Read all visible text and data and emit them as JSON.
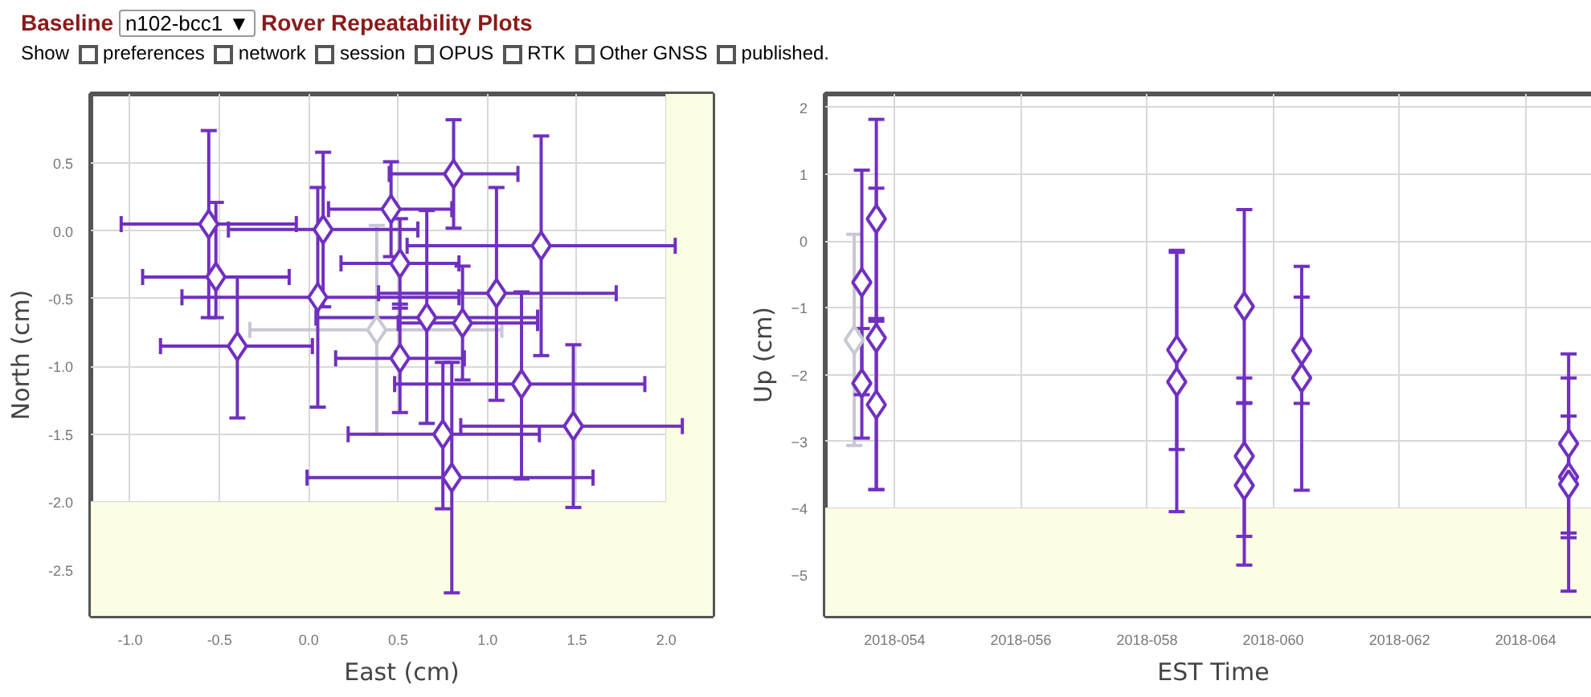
{
  "chart_data": [
    {
      "type": "scatter",
      "title": "Rover Repeatability Plots",
      "annotations": [
        "Baseline",
        "n102-bcc1 ▼",
        "Show",
        "preferences",
        "network",
        "session",
        "OPUS",
        "RTK",
        "Other GNSS",
        "published."
      ],
      "xlabel": "East (cm)",
      "ylabel": "North (cm)",
      "xlim": [
        -1.22,
        2.26
      ],
      "ylim": [
        -2.84,
        1.01
      ],
      "xticks": [
        {
          "value": -1,
          "label": "-1.0"
        },
        {
          "value": -0.5,
          "label": "-0.5"
        },
        {
          "value": 0,
          "label": "0.0"
        },
        {
          "value": 0.5,
          "label": "0.5"
        },
        {
          "value": 1,
          "label": "1.0"
        },
        {
          "value": 1.5,
          "label": "1.5"
        },
        {
          "value": 2,
          "label": "2.0"
        }
      ],
      "yticks": [
        {
          "value": 0.5,
          "label": "0.5"
        },
        {
          "value": 0,
          "label": "0.0"
        },
        {
          "value": -0.5,
          "label": "-0.5"
        },
        {
          "value": -1,
          "label": "-1.0"
        },
        {
          "value": -1.5,
          "label": "-1.5"
        },
        {
          "value": -2,
          "label": "-2.0"
        },
        {
          "value": -2.5,
          "label": "-2.5"
        }
      ],
      "grid": true,
      "marker": "diamond",
      "bands": [
        {
          "axis": "x",
          "from": 2.0,
          "to": 2.26,
          "color": "#fdfde4"
        },
        {
          "axis": "y",
          "from": -2.84,
          "to": -2.0,
          "color": "#fdfde4"
        }
      ],
      "series": [
        {
          "color": "#c8c8d4",
          "x": [
            0.38
          ],
          "values": [
            -0.73
          ],
          "xerrors": [
            [
              -0.33,
              1.08
            ]
          ],
          "errors": [
            [
              -1.5,
              0.04
            ]
          ]
        },
        {
          "color": "#7030c0",
          "x": [
            -0.56,
            -0.52,
            -0.4,
            0.08,
            0.05,
            0.46,
            0.81,
            0.51,
            1.3,
            1.05,
            0.66,
            0.86,
            0.51,
            1.19,
            1.48,
            0.75,
            0.8
          ],
          "values": [
            0.05,
            -0.34,
            -0.85,
            0.01,
            -0.49,
            0.16,
            0.42,
            -0.24,
            -0.11,
            -0.46,
            -0.64,
            -0.68,
            -0.94,
            -1.13,
            -1.44,
            -1.5,
            -1.82
          ],
          "xerrors": [
            [
              -1.05,
              -0.07
            ],
            [
              -0.93,
              -0.11
            ],
            [
              -0.83,
              0.02
            ],
            [
              -0.45,
              0.61
            ],
            [
              -0.71,
              0.84
            ],
            [
              0.11,
              0.8
            ],
            [
              0.45,
              1.17
            ],
            [
              0.18,
              0.84
            ],
            [
              0.55,
              2.05
            ],
            [
              0.39,
              1.72
            ],
            [
              0.04,
              1.28
            ],
            [
              0.5,
              1.28
            ],
            [
              0.15,
              0.87
            ],
            [
              0.48,
              1.88
            ],
            [
              0.85,
              2.09
            ],
            [
              0.22,
              1.29
            ],
            [
              -0.01,
              1.59
            ]
          ],
          "errors": [
            [
              -0.64,
              0.74
            ],
            [
              -0.64,
              0.21
            ],
            [
              -1.38,
              -0.34
            ],
            [
              -0.56,
              0.58
            ],
            [
              -1.3,
              0.32
            ],
            [
              -0.19,
              0.51
            ],
            [
              0.02,
              0.82
            ],
            [
              -0.57,
              0.09
            ],
            [
              -0.92,
              0.7
            ],
            [
              -1.25,
              0.32
            ],
            [
              -1.42,
              0.15
            ],
            [
              -1.1,
              -0.26
            ],
            [
              -1.34,
              -0.54
            ],
            [
              -1.83,
              -0.45
            ],
            [
              -2.04,
              -0.84
            ],
            [
              -2.05,
              -0.97
            ],
            [
              -2.67,
              -0.97
            ]
          ]
        }
      ]
    },
    {
      "type": "scatter",
      "xlabel": "EST Time",
      "ylabel": "Up (cm)",
      "xlim": [
        "2018-02-21T21:36",
        "2018-03-06T04:48"
      ],
      "ylim": [
        -5.61,
        2.2
      ],
      "xticks": [
        {
          "value": "2018-02-23",
          "label": "2018-054"
        },
        {
          "value": "2018-02-25",
          "label": "2018-056"
        },
        {
          "value": "2018-02-27",
          "label": "2018-058"
        },
        {
          "value": "2018-03-01",
          "label": "2018-060"
        },
        {
          "value": "2018-03-03",
          "label": "2018-062"
        },
        {
          "value": "2018-03-05",
          "label": "2018-064"
        }
      ],
      "yticks": [
        2,
        1,
        0,
        -1,
        -2,
        -3,
        -4,
        -5
      ],
      "grid": true,
      "marker": "diamond",
      "bands": [
        {
          "axis": "y",
          "from": -5.61,
          "to": -4,
          "color": "#fdfde4"
        }
      ],
      "series": [
        {
          "color": "#c8c8d4",
          "x": [
            "2018-02-22T08:38"
          ],
          "values": [
            -1.48
          ],
          "errors": [
            [
              -3.06,
              0.1
            ]
          ]
        },
        {
          "color": "#7030c0",
          "x": [
            "2018-02-22T11:31",
            "2018-02-22T11:31",
            "2018-02-22T17:02",
            "2018-02-22T17:02",
            "2018-02-22T17:02",
            "2018-02-27T11:17",
            "2018-02-27T11:17",
            "2018-02-28T12:58",
            "2018-02-28T12:58",
            "2018-02-28T12:58",
            "2018-03-01T10:48",
            "2018-03-01T10:48",
            "2018-03-05T16:19",
            "2018-03-05T16:19",
            "2018-03-05T16:19"
          ],
          "values": [
            -0.62,
            -2.13,
            0.33,
            -1.45,
            -2.45,
            -1.63,
            -2.11,
            -0.98,
            -3.22,
            -3.66,
            -1.64,
            -2.05,
            -3.03,
            -3.53,
            -3.64
          ],
          "errors": [
            [
              -2.3,
              1.06
            ],
            [
              -2.95,
              -1.31
            ],
            [
              -1.16,
              1.82
            ],
            [
              -3.72,
              0.79
            ],
            [
              -3.72,
              -1.2
            ],
            [
              -3.12,
              -0.14
            ],
            [
              -4.05,
              -0.17
            ],
            [
              -2.43,
              0.47
            ],
            [
              -4.42,
              -2.05
            ],
            [
              -4.85,
              -2.42
            ],
            [
              -2.43,
              -0.84
            ],
            [
              -3.73,
              -0.38
            ],
            [
              -4.37,
              -1.69
            ],
            [
              -4.44,
              -2.62
            ],
            [
              -5.24,
              -2.05
            ]
          ]
        }
      ]
    }
  ]
}
